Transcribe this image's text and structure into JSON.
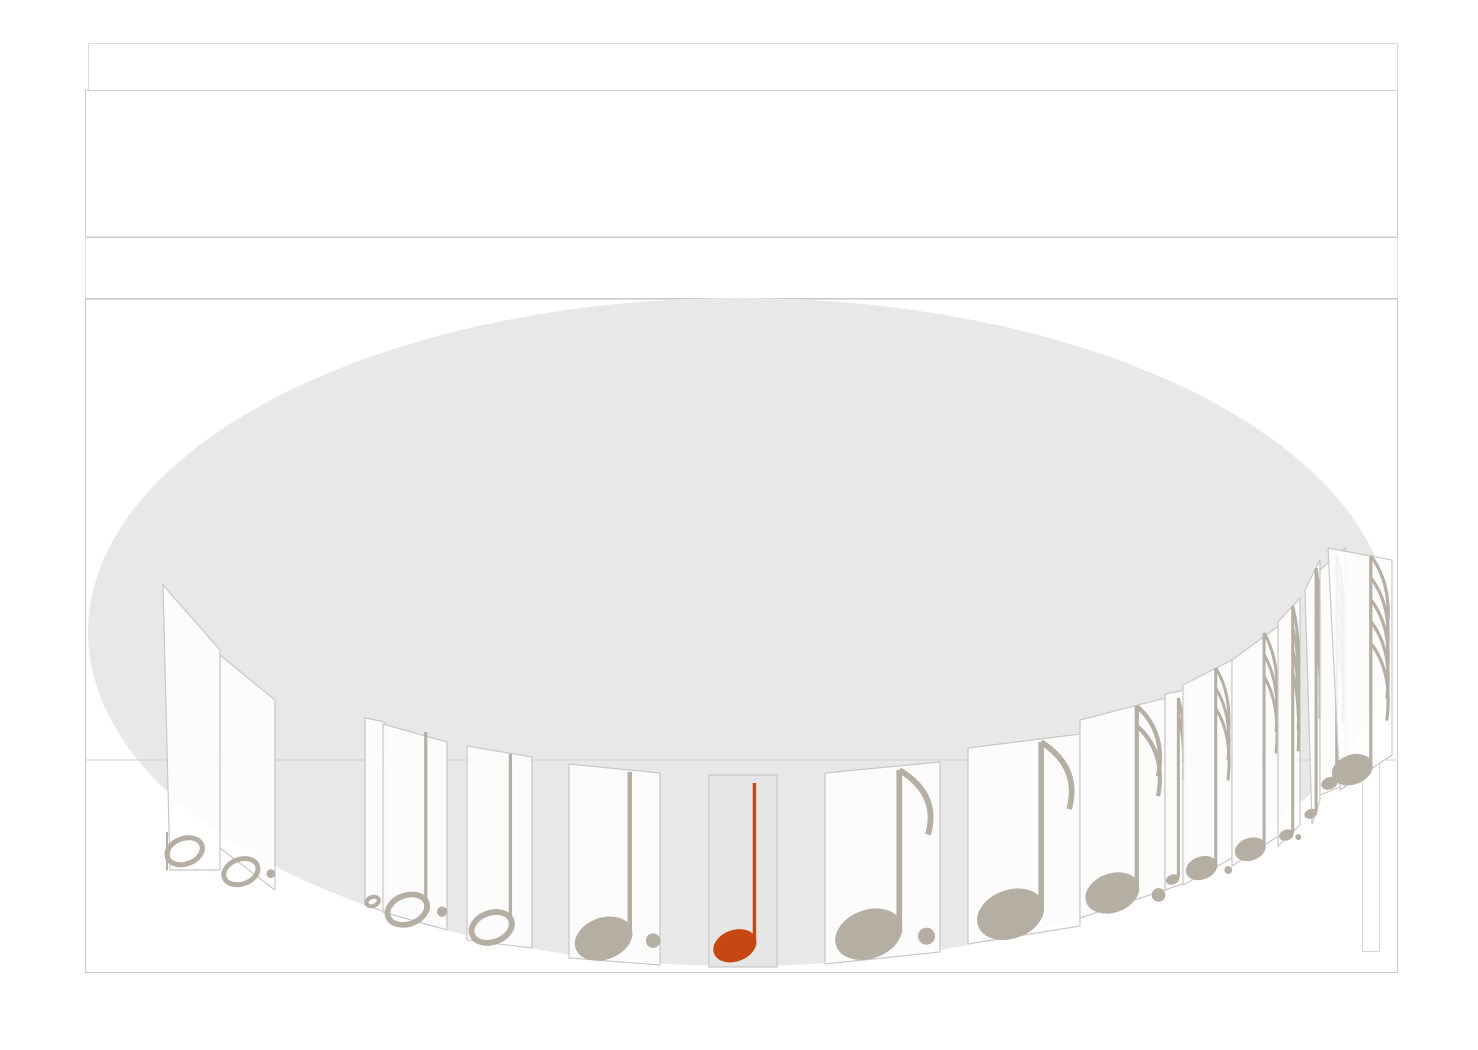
{
  "colors": {
    "platter": "#e8e8e8",
    "card_fill": "#ffffff",
    "card_border": "#c8c8c8",
    "glyph": "#b5aea3",
    "selected": "#c84612",
    "frame_border": "#cfcfcf"
  },
  "carousel": {
    "selected_index": 6,
    "items": [
      {
        "icon": "double-whole-note-icon"
      },
      {
        "icon": "dotted-whole-note-icon"
      },
      {
        "icon": "whole-note-icon"
      },
      {
        "icon": "dotted-half-note-icon"
      },
      {
        "icon": "half-note-icon"
      },
      {
        "icon": "dotted-quarter-note-icon"
      },
      {
        "icon": "quarter-note-icon"
      },
      {
        "icon": "dotted-eighth-note-icon"
      },
      {
        "icon": "eighth-note-icon"
      },
      {
        "icon": "dotted-sixteenth-note-icon"
      },
      {
        "icon": "sixteenth-note-icon"
      },
      {
        "icon": "dotted-thirty-second-note-icon"
      },
      {
        "icon": "thirty-second-note-icon"
      },
      {
        "icon": "dotted-sixty-fourth-note-icon"
      },
      {
        "icon": "sixty-fourth-note-icon"
      },
      {
        "icon": "dotted-128th-note-icon"
      },
      {
        "icon": "128th-note-icon"
      }
    ]
  }
}
